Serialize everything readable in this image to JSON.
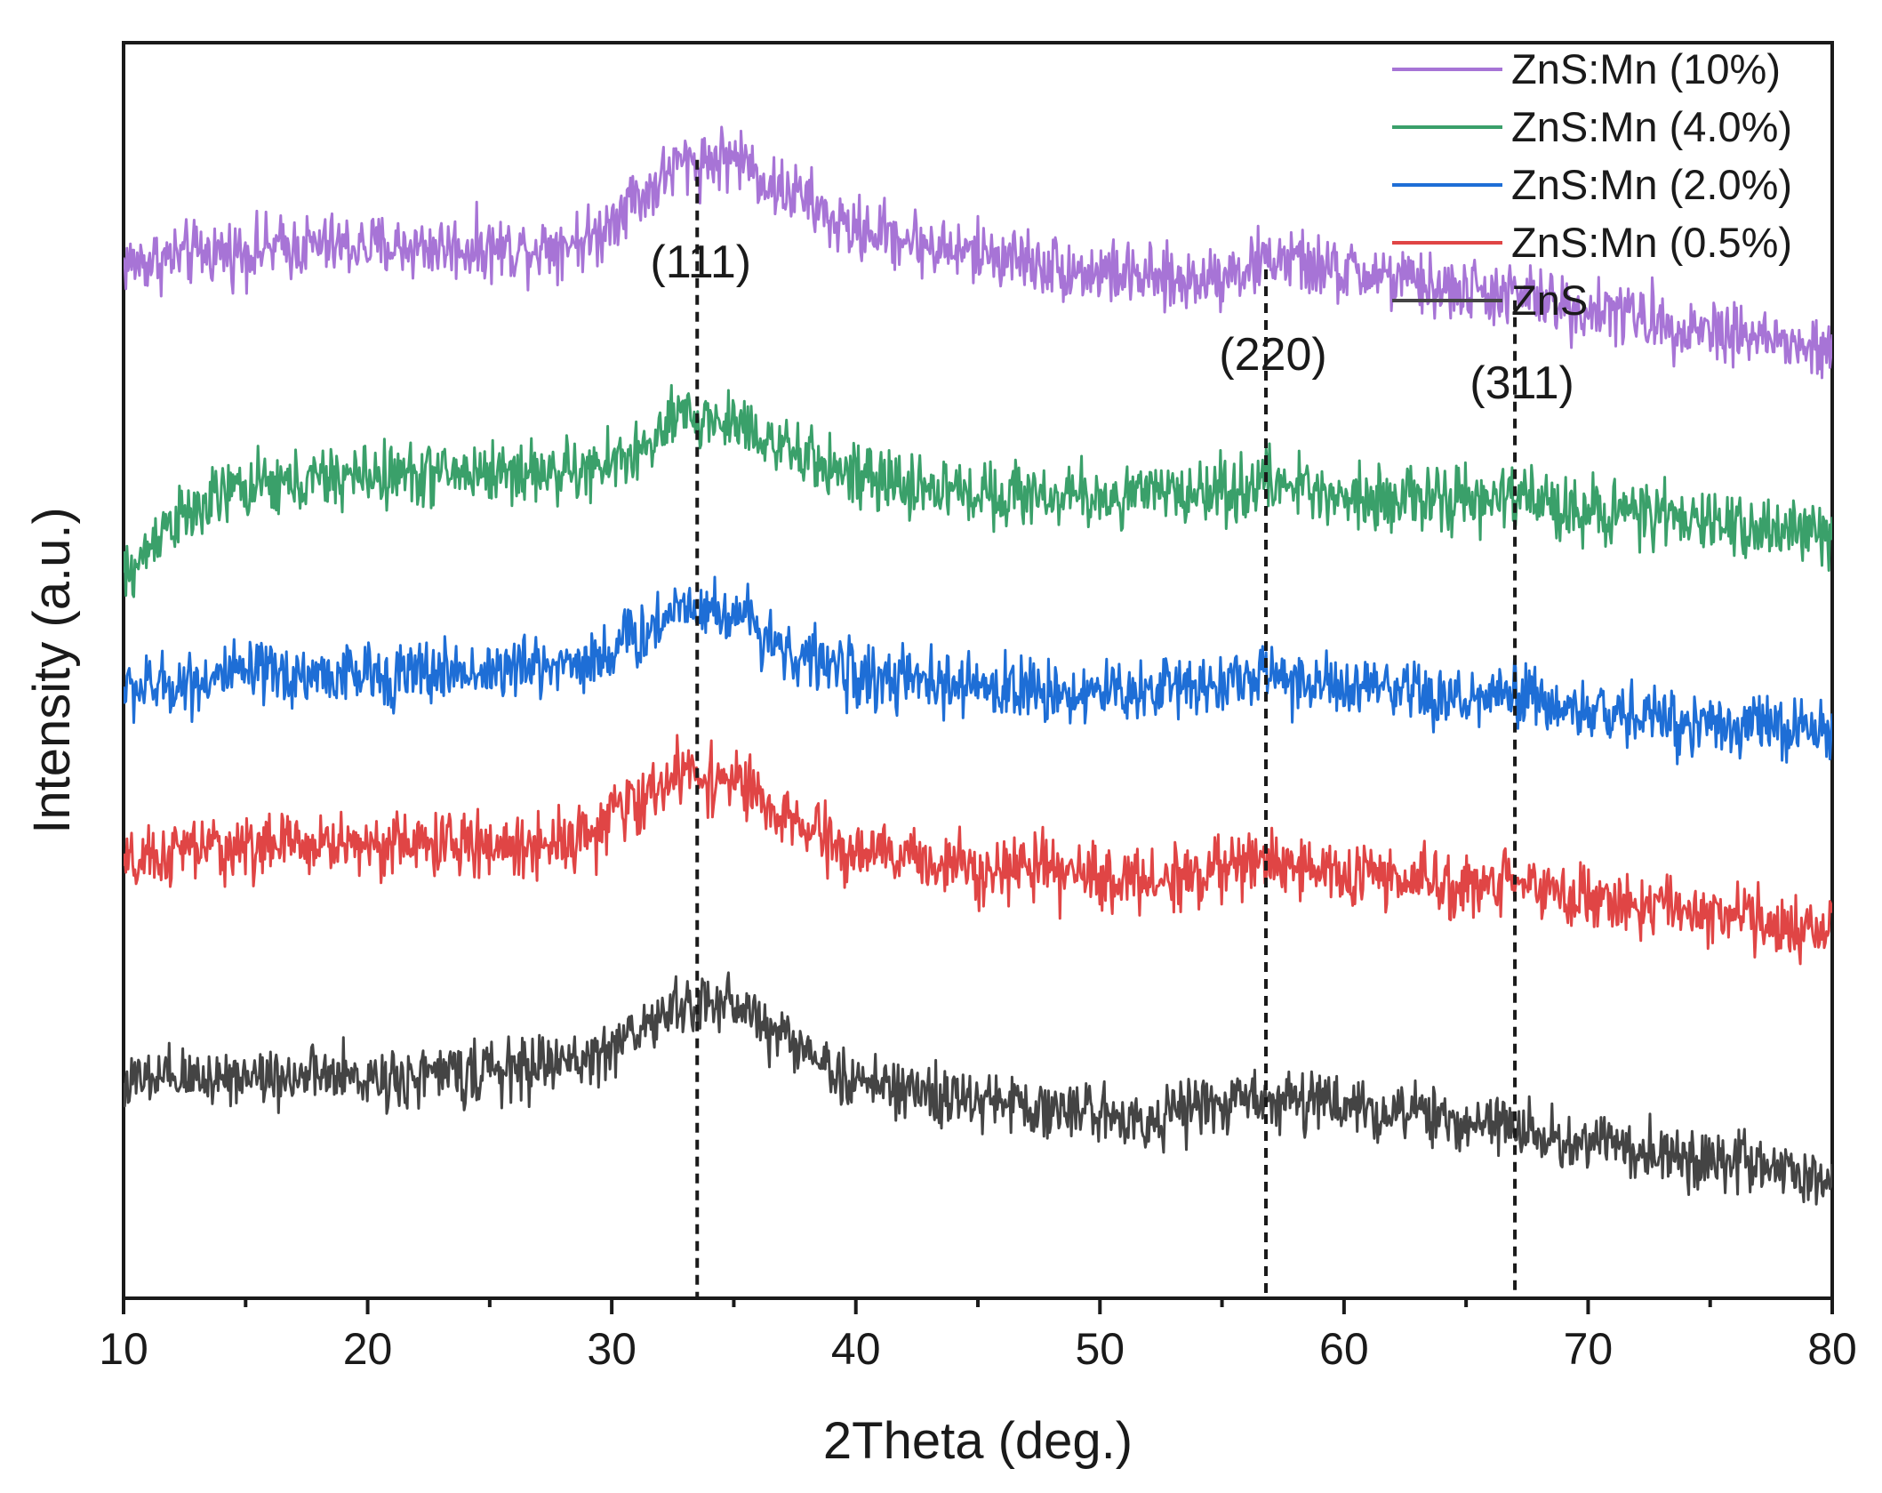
{
  "chart_data": {
    "type": "line",
    "title": "",
    "xlabel": "2Theta (deg.)",
    "ylabel": "Intensity (a.u.)",
    "xlim": [
      10,
      80
    ],
    "xticks": [
      10,
      20,
      30,
      40,
      50,
      60,
      70,
      80
    ],
    "yticks_shown": false,
    "legend_position": "top-right",
    "peaks": [
      {
        "label": "(111)",
        "x": 33.5
      },
      {
        "label": "(220)",
        "x": 56.8
      },
      {
        "label": "(311)",
        "x": 67.0
      }
    ],
    "series": [
      {
        "name": "ZnS:Mn (10%)",
        "color": "#a774d6",
        "noise": 0.45,
        "points": [
          [
            10,
            7.85
          ],
          [
            14,
            7.97
          ],
          [
            18,
            8.03
          ],
          [
            22,
            8.02
          ],
          [
            26,
            8.0
          ],
          [
            29,
            8.1
          ],
          [
            31,
            8.55
          ],
          [
            33,
            8.92
          ],
          [
            35,
            8.98
          ],
          [
            37,
            8.62
          ],
          [
            40,
            8.2
          ],
          [
            45,
            7.95
          ],
          [
            50,
            7.75
          ],
          [
            53,
            7.65
          ],
          [
            56,
            7.78
          ],
          [
            57,
            7.9
          ],
          [
            60,
            7.75
          ],
          [
            65,
            7.55
          ],
          [
            67,
            7.5
          ],
          [
            70,
            7.35
          ],
          [
            75,
            7.15
          ],
          [
            80,
            6.9
          ]
        ]
      },
      {
        "name": "ZnS:Mn (4.0%)",
        "color": "#3aa06a",
        "noise": 0.45,
        "points": [
          [
            10,
            4.5
          ],
          [
            12,
            5.1
          ],
          [
            15,
            5.45
          ],
          [
            20,
            5.58
          ],
          [
            25,
            5.62
          ],
          [
            29,
            5.62
          ],
          [
            31,
            5.82
          ],
          [
            33,
            6.2
          ],
          [
            35,
            6.15
          ],
          [
            38,
            5.75
          ],
          [
            41,
            5.5
          ],
          [
            45,
            5.4
          ],
          [
            50,
            5.35
          ],
          [
            55,
            5.42
          ],
          [
            57,
            5.5
          ],
          [
            60,
            5.38
          ],
          [
            65,
            5.3
          ],
          [
            67,
            5.35
          ],
          [
            70,
            5.22
          ],
          [
            75,
            5.08
          ],
          [
            80,
            4.95
          ]
        ]
      },
      {
        "name": "ZnS:Mn (2.0%)",
        "color": "#1e6ed6",
        "noise": 0.45,
        "points": [
          [
            10,
            3.3
          ],
          [
            15,
            3.45
          ],
          [
            20,
            3.45
          ],
          [
            25,
            3.5
          ],
          [
            29,
            3.6
          ],
          [
            31,
            3.85
          ],
          [
            33,
            4.22
          ],
          [
            35,
            4.1
          ],
          [
            38,
            3.62
          ],
          [
            41,
            3.4
          ],
          [
            45,
            3.32
          ],
          [
            50,
            3.26
          ],
          [
            55,
            3.38
          ],
          [
            57,
            3.45
          ],
          [
            60,
            3.3
          ],
          [
            65,
            3.18
          ],
          [
            67,
            3.22
          ],
          [
            70,
            3.05
          ],
          [
            75,
            2.95
          ],
          [
            80,
            2.85
          ]
        ]
      },
      {
        "name": "ZnS:Mn (0.5%)",
        "color": "#e04545",
        "noise": 0.45,
        "points": [
          [
            10,
            1.4
          ],
          [
            13,
            1.6
          ],
          [
            18,
            1.65
          ],
          [
            22,
            1.65
          ],
          [
            26,
            1.62
          ],
          [
            29,
            1.75
          ],
          [
            31,
            2.1
          ],
          [
            33,
            2.42
          ],
          [
            35,
            2.32
          ],
          [
            37,
            1.9
          ],
          [
            40,
            1.55
          ],
          [
            45,
            1.42
          ],
          [
            50,
            1.3
          ],
          [
            52,
            1.25
          ],
          [
            55,
            1.38
          ],
          [
            57,
            1.48
          ],
          [
            60,
            1.32
          ],
          [
            65,
            1.2
          ],
          [
            67,
            1.28
          ],
          [
            70,
            1.05
          ],
          [
            75,
            0.92
          ],
          [
            80,
            0.72
          ]
        ]
      },
      {
        "name": "ZnS",
        "color": "#444444",
        "noise": 0.42,
        "points": [
          [
            10,
            -0.9
          ],
          [
            15,
            -0.82
          ],
          [
            20,
            -0.85
          ],
          [
            25,
            -0.78
          ],
          [
            29,
            -0.65
          ],
          [
            31,
            -0.35
          ],
          [
            33,
            -0.08
          ],
          [
            35,
            -0.05
          ],
          [
            37,
            -0.4
          ],
          [
            40,
            -0.9
          ],
          [
            45,
            -1.1
          ],
          [
            50,
            -1.22
          ],
          [
            52,
            -1.28
          ],
          [
            55,
            -1.12
          ],
          [
            57,
            -1.05
          ],
          [
            60,
            -1.15
          ],
          [
            65,
            -1.32
          ],
          [
            67,
            -1.38
          ],
          [
            70,
            -1.55
          ],
          [
            75,
            -1.72
          ],
          [
            80,
            -1.95
          ]
        ]
      }
    ]
  }
}
